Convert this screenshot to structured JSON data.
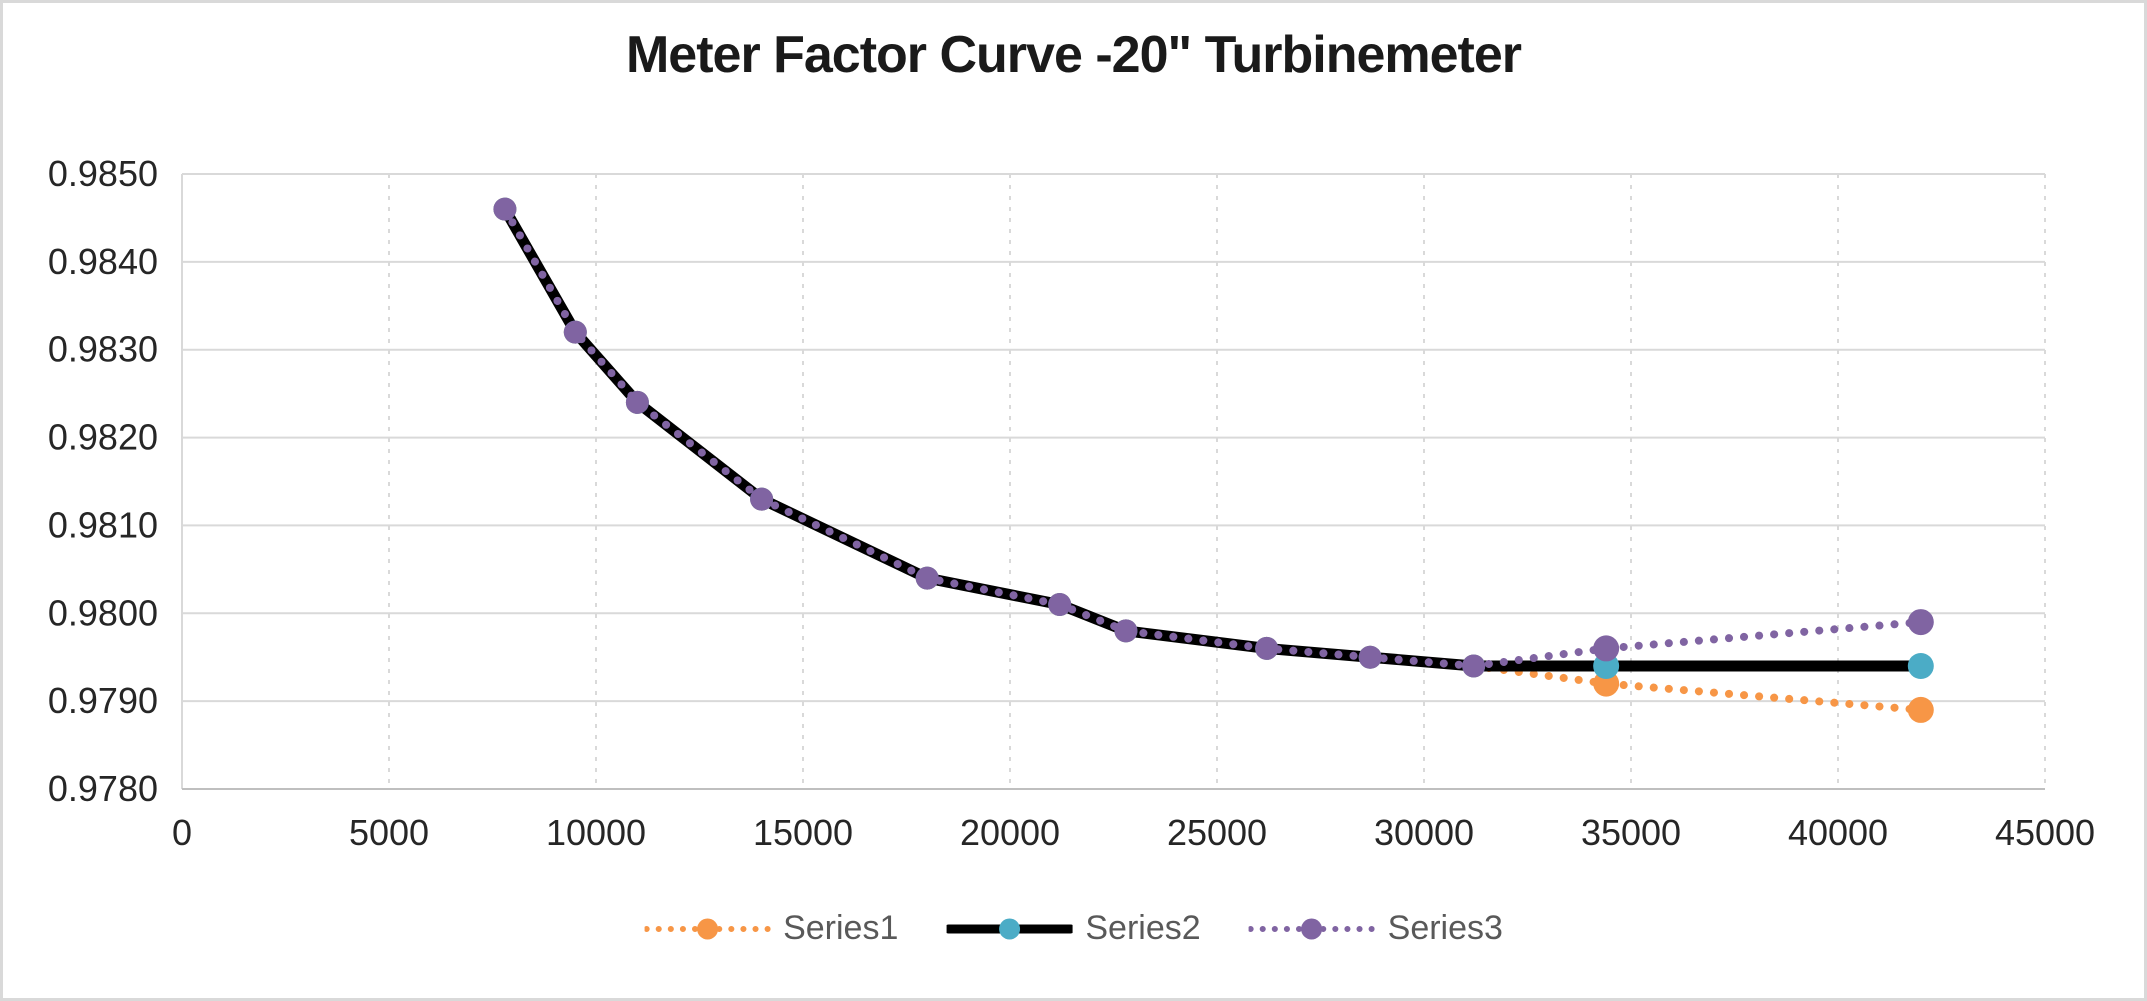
{
  "title": "Meter Factor Curve -20\" Turbinemeter",
  "chart_data": {
    "type": "line",
    "title": "Meter Factor Curve -20\" Turbinemeter",
    "xlabel": "",
    "ylabel": "",
    "xlim": [
      0,
      45000
    ],
    "ylim": [
      0.978,
      0.985
    ],
    "x_ticks": [
      0,
      5000,
      10000,
      15000,
      20000,
      25000,
      30000,
      35000,
      40000,
      45000
    ],
    "y_tick_labels": [
      "0.9850",
      "0.9840",
      "0.9830",
      "0.9820",
      "0.9810",
      "0.9800",
      "0.9790",
      "0.9780"
    ],
    "grid": {
      "horizontal": "solid",
      "vertical": "dashed"
    },
    "legend_position": "bottom",
    "x": [
      7800,
      9500,
      11000,
      14000,
      18000,
      21200,
      22800,
      26200,
      28700,
      31200,
      34400,
      42000
    ],
    "series": [
      {
        "name": "Series1",
        "line": "dotted",
        "color": "#F79646",
        "marker": "circle",
        "values": [
          0.9846,
          0.9832,
          0.9824,
          0.9813,
          0.9804,
          0.9801,
          0.9798,
          0.9796,
          0.9795,
          0.9794,
          0.9792,
          0.9789
        ]
      },
      {
        "name": "Series2",
        "line": "solid",
        "line_color": "#000000",
        "color": "#4BACC6",
        "marker": "circle",
        "values": [
          0.9846,
          0.9832,
          0.9824,
          0.9813,
          0.9804,
          0.9801,
          0.9798,
          0.9796,
          0.9795,
          0.9794,
          0.9794,
          0.9794
        ]
      },
      {
        "name": "Series3",
        "line": "dotted",
        "color": "#8064A2",
        "marker": "circle",
        "values": [
          0.9846,
          0.9832,
          0.9824,
          0.9813,
          0.9804,
          0.9801,
          0.9798,
          0.9796,
          0.9795,
          0.9794,
          0.9796,
          0.9799
        ]
      }
    ]
  },
  "colors": {
    "background": "#FFFFFF",
    "frame_border": "#D9D9D9",
    "gridline": "#D9D9D9",
    "axis_line": "#BFBFBF",
    "tick_label": "#262626",
    "title_text": "#1A1A1A",
    "legend_text": "#595959"
  }
}
